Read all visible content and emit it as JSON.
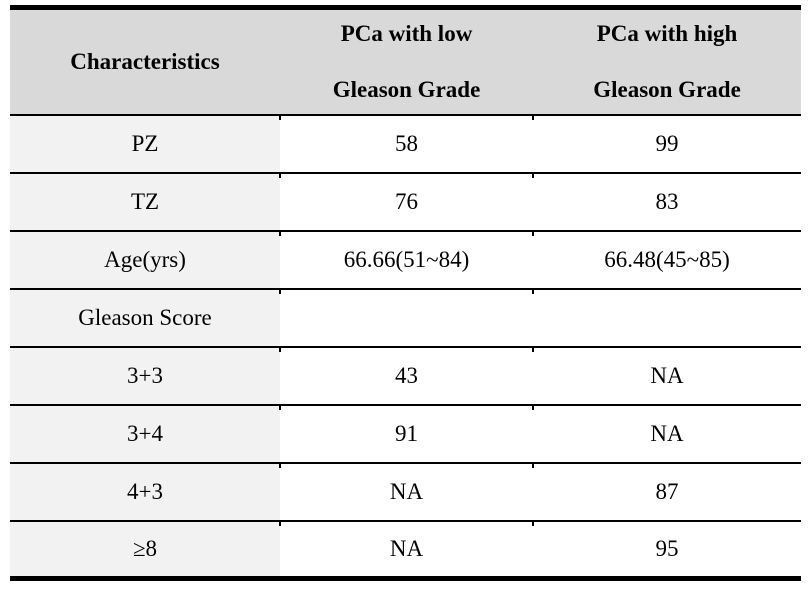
{
  "table": {
    "header": {
      "characteristics": "Characteristics",
      "col_low": {
        "line1": "PCa with low",
        "line2": "Gleason Grade"
      },
      "col_high": {
        "line1": "PCa with high",
        "line2": "Gleason Grade"
      }
    },
    "rows": [
      {
        "label": "PZ",
        "low": "58",
        "high": "99"
      },
      {
        "label": "TZ",
        "low": "76",
        "high": "83"
      },
      {
        "label": "Age(yrs)",
        "low": "66.66(51~84)",
        "high": "66.48(45~85)"
      },
      {
        "label": "Gleason Score",
        "low": "",
        "high": ""
      },
      {
        "label": "3+3",
        "low": "43",
        "high": "NA"
      },
      {
        "label": "3+4",
        "low": "91",
        "high": "NA"
      },
      {
        "label": "4+3",
        "low": "NA",
        "high": "87"
      },
      {
        "label": "≥8",
        "low": "NA",
        "high": "95"
      }
    ],
    "colors": {
      "header_bg": "#d9d9d9",
      "label_column_bg": "#f2f2f2",
      "border": "#000000",
      "text": "#000000"
    }
  }
}
